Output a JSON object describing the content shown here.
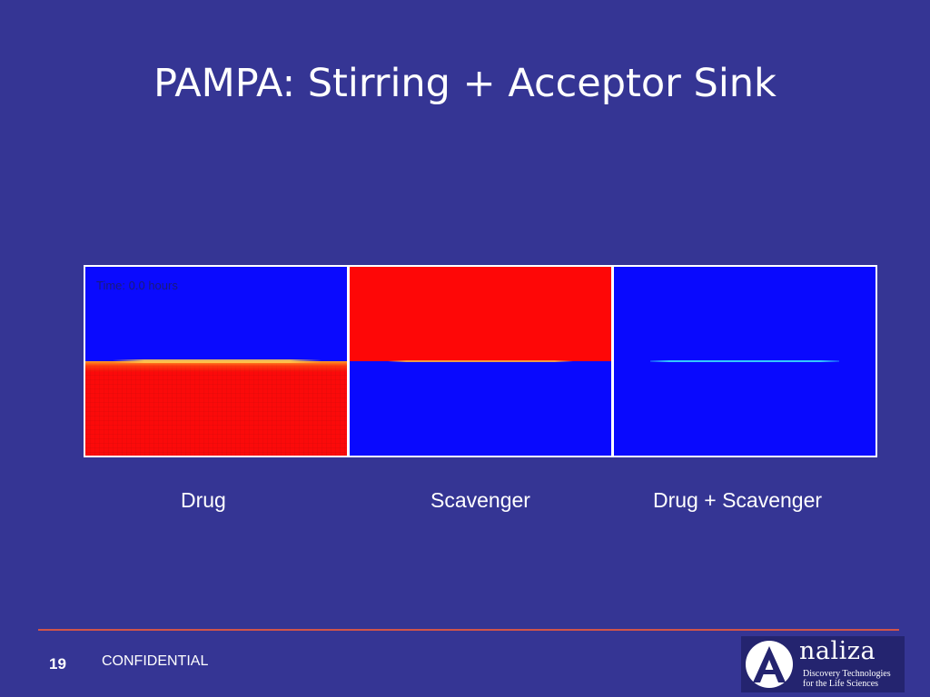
{
  "slide": {
    "title": "PAMPA: Stirring + Acceptor Sink",
    "time_label": "Time: 0.0 hours",
    "panels": [
      {
        "caption": "Drug"
      },
      {
        "caption": "Scavenger"
      },
      {
        "caption": "Drug + Scavenger"
      }
    ]
  },
  "footer": {
    "page_number": "19",
    "confidential": "CONFIDENTIAL",
    "rule_color": "#d1544a"
  },
  "logo": {
    "word": "naliza",
    "tagline_line1": "Discovery Technologies",
    "tagline_line2": "for the Life Sciences"
  },
  "colors": {
    "background": "#353594",
    "concentration_high": "#fb0a0a",
    "concentration_low": "#0a0afe"
  }
}
